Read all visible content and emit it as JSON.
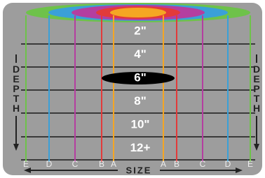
{
  "depth_labels": [
    "2\"",
    "4\"",
    "6\"",
    "8\"",
    "10\"",
    "12+"
  ],
  "side_labels": [
    "DEPTH",
    "DEPTH"
  ],
  "size_scale": [
    "E",
    "D",
    "C",
    "B",
    "A",
    "A",
    "B",
    "C",
    "D",
    "E"
  ],
  "size_label": "SIZE"
}
